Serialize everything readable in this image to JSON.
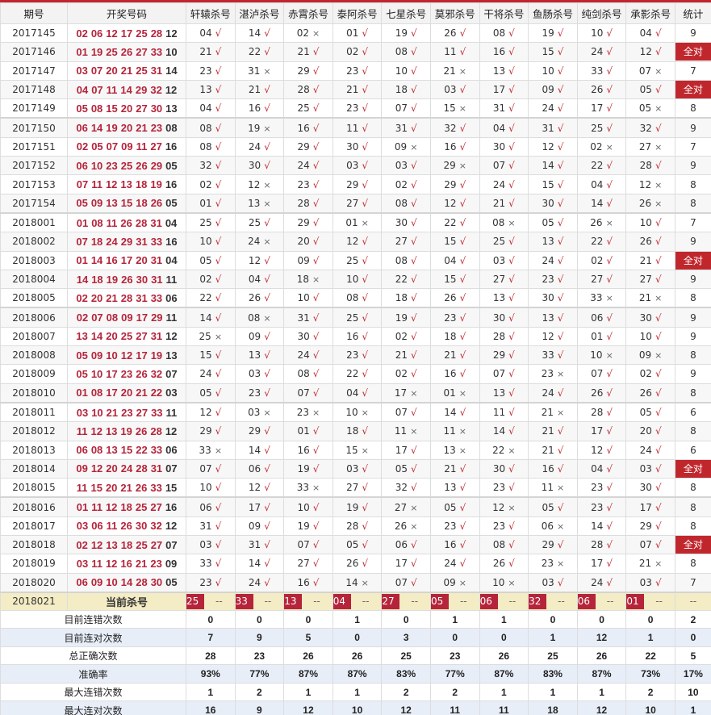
{
  "headers": [
    "期号",
    "开奖号码",
    "轩辕杀号",
    "湛泸杀号",
    "赤霄杀号",
    "泰阿杀号",
    "七星杀号",
    "莫邪杀号",
    "干将杀号",
    "鱼肠杀号",
    "纯剑杀号",
    "承影杀号",
    "统计"
  ],
  "marks": {
    "ok": "√",
    "no": "×"
  },
  "colors": {
    "accent": "#c0272d",
    "current_row": "#f3ecc5",
    "summary_alt": "#e8eef8"
  },
  "rows": [
    {
      "p": "2017145",
      "r": [
        "02",
        "06",
        "12",
        "17",
        "25",
        "28"
      ],
      "b": "12",
      "k": [
        "04v",
        "14v",
        "02x",
        "01v",
        "19v",
        "26v",
        "08v",
        "19v",
        "10v",
        "04v"
      ],
      "s": "9"
    },
    {
      "p": "2017146",
      "r": [
        "01",
        "19",
        "25",
        "26",
        "27",
        "33"
      ],
      "b": "10",
      "k": [
        "21v",
        "22v",
        "21v",
        "02v",
        "08v",
        "11v",
        "16v",
        "15v",
        "24v",
        "12v"
      ],
      "s": "全对"
    },
    {
      "p": "2017147",
      "r": [
        "03",
        "07",
        "20",
        "21",
        "25",
        "31"
      ],
      "b": "14",
      "k": [
        "23v",
        "31x",
        "29v",
        "23v",
        "10v",
        "21x",
        "13v",
        "10v",
        "33v",
        "07x"
      ],
      "s": "7"
    },
    {
      "p": "2017148",
      "r": [
        "04",
        "07",
        "11",
        "14",
        "29",
        "32"
      ],
      "b": "12",
      "k": [
        "13v",
        "21v",
        "28v",
        "21v",
        "18v",
        "03v",
        "17v",
        "09v",
        "26v",
        "05v"
      ],
      "s": "全对"
    },
    {
      "p": "2017149",
      "r": [
        "05",
        "08",
        "15",
        "20",
        "27",
        "30"
      ],
      "b": "13",
      "k": [
        "04v",
        "16v",
        "25v",
        "23v",
        "07v",
        "15x",
        "31v",
        "24v",
        "17v",
        "05x"
      ],
      "s": "8"
    },
    {
      "p": "2017150",
      "r": [
        "06",
        "14",
        "19",
        "20",
        "21",
        "23"
      ],
      "b": "08",
      "k": [
        "08v",
        "19x",
        "16v",
        "11v",
        "31v",
        "32v",
        "04v",
        "31v",
        "25v",
        "32v"
      ],
      "s": "9"
    },
    {
      "p": "2017151",
      "r": [
        "02",
        "05",
        "07",
        "09",
        "11",
        "27"
      ],
      "b": "16",
      "k": [
        "08v",
        "24v",
        "29v",
        "30v",
        "09x",
        "16v",
        "30v",
        "12v",
        "02x",
        "27x"
      ],
      "s": "7"
    },
    {
      "p": "2017152",
      "r": [
        "06",
        "10",
        "23",
        "25",
        "26",
        "29"
      ],
      "b": "05",
      "k": [
        "32v",
        "30v",
        "24v",
        "03v",
        "03v",
        "29x",
        "07v",
        "14v",
        "22v",
        "28v"
      ],
      "s": "9"
    },
    {
      "p": "2017153",
      "r": [
        "07",
        "11",
        "12",
        "13",
        "18",
        "19"
      ],
      "b": "16",
      "k": [
        "02v",
        "12x",
        "23v",
        "29v",
        "02v",
        "29v",
        "24v",
        "15v",
        "04v",
        "12x"
      ],
      "s": "8"
    },
    {
      "p": "2017154",
      "r": [
        "05",
        "09",
        "13",
        "15",
        "18",
        "26"
      ],
      "b": "05",
      "k": [
        "01v",
        "13x",
        "28v",
        "27v",
        "08v",
        "12v",
        "21v",
        "30v",
        "14v",
        "26x"
      ],
      "s": "8"
    },
    {
      "p": "2018001",
      "r": [
        "01",
        "08",
        "11",
        "26",
        "28",
        "31"
      ],
      "b": "04",
      "k": [
        "25v",
        "25v",
        "29v",
        "01x",
        "30v",
        "22v",
        "08x",
        "05v",
        "26x",
        "10v"
      ],
      "s": "7"
    },
    {
      "p": "2018002",
      "r": [
        "07",
        "18",
        "24",
        "29",
        "31",
        "33"
      ],
      "b": "16",
      "k": [
        "10v",
        "24x",
        "20v",
        "12v",
        "27v",
        "15v",
        "25v",
        "13v",
        "22v",
        "26v"
      ],
      "s": "9"
    },
    {
      "p": "2018003",
      "r": [
        "01",
        "14",
        "16",
        "17",
        "20",
        "31"
      ],
      "b": "04",
      "k": [
        "05v",
        "12v",
        "09v",
        "25v",
        "08v",
        "04v",
        "03v",
        "24v",
        "02v",
        "21v"
      ],
      "s": "全对"
    },
    {
      "p": "2018004",
      "r": [
        "14",
        "18",
        "19",
        "26",
        "30",
        "31"
      ],
      "b": "11",
      "k": [
        "02v",
        "04v",
        "18x",
        "10v",
        "22v",
        "15v",
        "27v",
        "23v",
        "27v",
        "27v"
      ],
      "s": "9"
    },
    {
      "p": "2018005",
      "r": [
        "02",
        "20",
        "21",
        "28",
        "31",
        "33"
      ],
      "b": "06",
      "k": [
        "22v",
        "26v",
        "10v",
        "08v",
        "18v",
        "26v",
        "13v",
        "30v",
        "33x",
        "21x"
      ],
      "s": "8"
    },
    {
      "p": "2018006",
      "r": [
        "02",
        "07",
        "08",
        "09",
        "17",
        "29"
      ],
      "b": "11",
      "k": [
        "14v",
        "08x",
        "31v",
        "25v",
        "19v",
        "23v",
        "30v",
        "13v",
        "06v",
        "30v"
      ],
      "s": "9"
    },
    {
      "p": "2018007",
      "r": [
        "13",
        "14",
        "20",
        "25",
        "27",
        "31"
      ],
      "b": "12",
      "k": [
        "25x",
        "09v",
        "30v",
        "16v",
        "02v",
        "18v",
        "28v",
        "12v",
        "01v",
        "10v"
      ],
      "s": "9"
    },
    {
      "p": "2018008",
      "r": [
        "05",
        "09",
        "10",
        "12",
        "17",
        "19"
      ],
      "b": "13",
      "k": [
        "15v",
        "13v",
        "24v",
        "23v",
        "21v",
        "21v",
        "29v",
        "33v",
        "10x",
        "09x"
      ],
      "s": "8"
    },
    {
      "p": "2018009",
      "r": [
        "05",
        "10",
        "17",
        "23",
        "26",
        "32"
      ],
      "b": "07",
      "k": [
        "24v",
        "03v",
        "08v",
        "22v",
        "02v",
        "16v",
        "07v",
        "23x",
        "07v",
        "02v"
      ],
      "s": "9"
    },
    {
      "p": "2018010",
      "r": [
        "01",
        "08",
        "17",
        "20",
        "21",
        "22"
      ],
      "b": "03",
      "k": [
        "05v",
        "23v",
        "07v",
        "04v",
        "17x",
        "01x",
        "13v",
        "24v",
        "26v",
        "26v"
      ],
      "s": "8"
    },
    {
      "p": "2018011",
      "r": [
        "03",
        "10",
        "21",
        "23",
        "27",
        "33"
      ],
      "b": "11",
      "k": [
        "12v",
        "03x",
        "23x",
        "10x",
        "07v",
        "14v",
        "11v",
        "21x",
        "28v",
        "05v"
      ],
      "s": "6"
    },
    {
      "p": "2018012",
      "r": [
        "11",
        "12",
        "13",
        "19",
        "26",
        "28"
      ],
      "b": "12",
      "k": [
        "29v",
        "29v",
        "01v",
        "18v",
        "11x",
        "11x",
        "14v",
        "21v",
        "17v",
        "20v"
      ],
      "s": "8"
    },
    {
      "p": "2018013",
      "r": [
        "06",
        "08",
        "13",
        "15",
        "22",
        "33"
      ],
      "b": "06",
      "k": [
        "33x",
        "14v",
        "16v",
        "15x",
        "17v",
        "13x",
        "22x",
        "21v",
        "12v",
        "24v"
      ],
      "s": "6"
    },
    {
      "p": "2018014",
      "r": [
        "09",
        "12",
        "20",
        "24",
        "28",
        "31"
      ],
      "b": "07",
      "k": [
        "07v",
        "06v",
        "19v",
        "03v",
        "05v",
        "21v",
        "30v",
        "16v",
        "04v",
        "03v"
      ],
      "s": "全对"
    },
    {
      "p": "2018015",
      "r": [
        "11",
        "15",
        "20",
        "21",
        "26",
        "33"
      ],
      "b": "15",
      "k": [
        "10v",
        "12v",
        "33x",
        "27v",
        "32v",
        "13v",
        "23v",
        "11x",
        "23v",
        "30v"
      ],
      "s": "8"
    },
    {
      "p": "2018016",
      "r": [
        "01",
        "11",
        "12",
        "18",
        "25",
        "27"
      ],
      "b": "16",
      "k": [
        "06v",
        "17v",
        "10v",
        "19v",
        "27x",
        "05v",
        "12x",
        "05v",
        "23v",
        "17v"
      ],
      "s": "8"
    },
    {
      "p": "2018017",
      "r": [
        "03",
        "06",
        "11",
        "26",
        "30",
        "32"
      ],
      "b": "12",
      "k": [
        "31v",
        "09v",
        "19v",
        "28v",
        "26x",
        "23v",
        "23v",
        "06x",
        "14v",
        "29v"
      ],
      "s": "8"
    },
    {
      "p": "2018018",
      "r": [
        "02",
        "12",
        "13",
        "18",
        "25",
        "27"
      ],
      "b": "07",
      "k": [
        "03v",
        "31v",
        "07v",
        "05v",
        "06v",
        "16v",
        "08v",
        "29v",
        "28v",
        "07v"
      ],
      "s": "全对"
    },
    {
      "p": "2018019",
      "r": [
        "03",
        "11",
        "12",
        "16",
        "21",
        "23"
      ],
      "b": "09",
      "k": [
        "33v",
        "14v",
        "27v",
        "26v",
        "17v",
        "24v",
        "26v",
        "23x",
        "17v",
        "21x"
      ],
      "s": "8"
    },
    {
      "p": "2018020",
      "r": [
        "06",
        "09",
        "10",
        "14",
        "28",
        "30"
      ],
      "b": "05",
      "k": [
        "23v",
        "24v",
        "16v",
        "14x",
        "07v",
        "09x",
        "10x",
        "03v",
        "24v",
        "03v"
      ],
      "s": "7"
    }
  ],
  "current": {
    "period": "2018021",
    "label": "当前杀号",
    "kills": [
      "25",
      "33",
      "13",
      "04",
      "27",
      "05",
      "06",
      "32",
      "06",
      "01"
    ],
    "pending": "--"
  },
  "summary": [
    {
      "label": "目前连错次数",
      "v": [
        "0",
        "0",
        "0",
        "1",
        "0",
        "1",
        "1",
        "0",
        "0",
        "0",
        "2"
      ]
    },
    {
      "label": "目前连对次数",
      "v": [
        "7",
        "9",
        "5",
        "0",
        "3",
        "0",
        "0",
        "1",
        "12",
        "1",
        "0"
      ]
    },
    {
      "label": "总正确次数",
      "v": [
        "28",
        "23",
        "26",
        "26",
        "25",
        "23",
        "26",
        "25",
        "26",
        "22",
        "5"
      ]
    },
    {
      "label": "准确率",
      "v": [
        "93%",
        "77%",
        "87%",
        "87%",
        "83%",
        "77%",
        "87%",
        "83%",
        "87%",
        "73%",
        "17%"
      ]
    },
    {
      "label": "最大连错次数",
      "v": [
        "1",
        "2",
        "1",
        "1",
        "2",
        "2",
        "1",
        "1",
        "1",
        "2",
        "10"
      ]
    },
    {
      "label": "最大连对次数",
      "v": [
        "16",
        "9",
        "12",
        "10",
        "12",
        "11",
        "11",
        "18",
        "12",
        "10",
        "1"
      ]
    }
  ]
}
